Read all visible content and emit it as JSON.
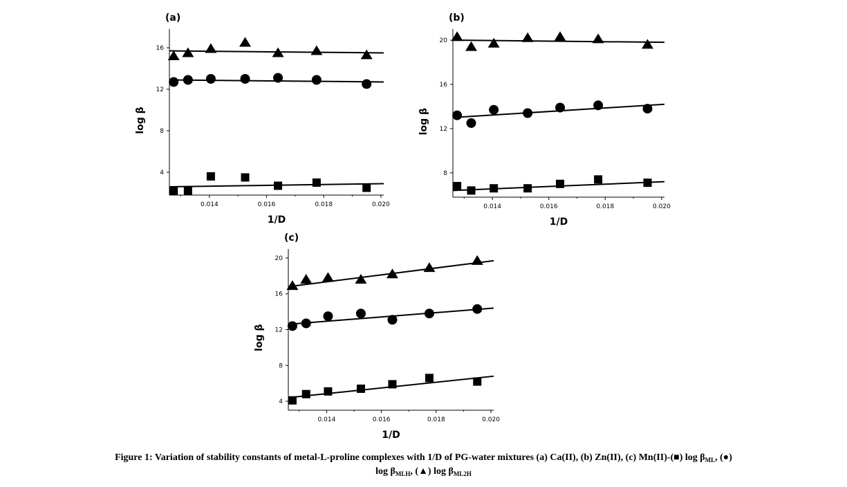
{
  "chart_data": [
    {
      "type": "scatter",
      "panel_label": "(a)",
      "xlabel": "1/D",
      "ylabel": "log β",
      "xlim": [
        0.0126,
        0.0201
      ],
      "ylim": [
        1.8,
        17.8
      ],
      "xticks": [
        0.014,
        0.016,
        0.018,
        0.02
      ],
      "xtick_labels": [
        "0.014",
        "0.016",
        "0.018",
        "0.020"
      ],
      "yticks": [
        4,
        8,
        12,
        16
      ],
      "ytick_labels": [
        "4",
        "8",
        "12",
        "16"
      ],
      "series": [
        {
          "marker": "square",
          "x": [
            0.01275,
            0.01325,
            0.01405,
            0.01525,
            0.0164,
            0.01775,
            0.0195
          ],
          "y": [
            2.2,
            2.2,
            3.6,
            3.5,
            2.7,
            3.0,
            2.5
          ],
          "fit": [
            2.6,
            2.9
          ]
        },
        {
          "marker": "circle",
          "x": [
            0.01275,
            0.01325,
            0.01405,
            0.01525,
            0.0164,
            0.01775,
            0.0195
          ],
          "y": [
            12.7,
            12.9,
            13.0,
            13.0,
            13.1,
            12.9,
            12.5
          ],
          "fit": [
            12.9,
            12.7
          ]
        },
        {
          "marker": "triangle",
          "x": [
            0.01275,
            0.01325,
            0.01405,
            0.01525,
            0.0164,
            0.01775,
            0.0195
          ],
          "y": [
            15.2,
            15.5,
            15.9,
            16.5,
            15.5,
            15.7,
            15.3
          ],
          "fit": [
            15.7,
            15.5
          ]
        }
      ]
    },
    {
      "type": "scatter",
      "panel_label": "(b)",
      "xlabel": "1/D",
      "ylabel": "log β",
      "xlim": [
        0.0126,
        0.0201
      ],
      "ylim": [
        5.8,
        21.0
      ],
      "xticks": [
        0.014,
        0.016,
        0.018,
        0.02
      ],
      "xtick_labels": [
        "0.014",
        "0.016",
        "0.018",
        "0.020"
      ],
      "yticks": [
        8,
        12,
        16,
        20
      ],
      "ytick_labels": [
        "8",
        "12",
        "16",
        "20"
      ],
      "series": [
        {
          "marker": "square",
          "x": [
            0.01275,
            0.01325,
            0.01405,
            0.01525,
            0.0164,
            0.01775,
            0.0195
          ],
          "y": [
            6.8,
            6.4,
            6.6,
            6.6,
            7.0,
            7.4,
            7.1
          ],
          "fit": [
            6.4,
            7.2
          ]
        },
        {
          "marker": "circle",
          "x": [
            0.01275,
            0.01325,
            0.01405,
            0.01525,
            0.0164,
            0.01775,
            0.0195
          ],
          "y": [
            13.2,
            12.5,
            13.7,
            13.4,
            13.9,
            14.1,
            13.8
          ],
          "fit": [
            13.0,
            14.2
          ]
        },
        {
          "marker": "triangle",
          "x": [
            0.01275,
            0.01325,
            0.01405,
            0.01525,
            0.0164,
            0.01775,
            0.0195
          ],
          "y": [
            20.3,
            19.4,
            19.7,
            20.2,
            20.3,
            20.1,
            19.6
          ],
          "fit": [
            20.0,
            19.8
          ]
        }
      ]
    },
    {
      "type": "scatter",
      "panel_label": "(c)",
      "xlabel": "1/D",
      "ylabel": "log β",
      "xlim": [
        0.0126,
        0.0201
      ],
      "ylim": [
        3.0,
        21.0
      ],
      "xticks": [
        0.014,
        0.016,
        0.018,
        0.02
      ],
      "xtick_labels": [
        "0.014",
        "0.016",
        "0.018",
        "0.020"
      ],
      "yticks": [
        4,
        8,
        12,
        16,
        20
      ],
      "ytick_labels": [
        "4",
        "8",
        "12",
        "16",
        "20"
      ],
      "series": [
        {
          "marker": "square",
          "x": [
            0.01275,
            0.01325,
            0.01405,
            0.01525,
            0.0164,
            0.01775,
            0.0195
          ],
          "y": [
            4.1,
            4.8,
            5.1,
            5.4,
            5.9,
            6.6,
            6.2
          ],
          "fit": [
            4.4,
            6.8
          ]
        },
        {
          "marker": "circle",
          "x": [
            0.01275,
            0.01325,
            0.01405,
            0.01525,
            0.0164,
            0.01775,
            0.0195
          ],
          "y": [
            12.4,
            12.7,
            13.5,
            13.8,
            13.1,
            13.8,
            14.3
          ],
          "fit": [
            12.6,
            14.4
          ]
        },
        {
          "marker": "triangle",
          "x": [
            0.01275,
            0.01325,
            0.01405,
            0.01525,
            0.0164,
            0.01775,
            0.0195
          ],
          "y": [
            16.9,
            17.6,
            17.8,
            17.6,
            18.2,
            18.9,
            19.7
          ],
          "fit": [
            16.8,
            19.7
          ]
        }
      ]
    }
  ],
  "caption": {
    "line1_text": "Figure 1: Variation of stability constants of metal-L-proline complexes with 1/D of PG-water mixtures (a) Ca(II), (b) Zn(II), (c) Mn(II)-(■) log β",
    "line1_sub1": "ML",
    "line1_mid": ", (●)",
    "line2_prefix": "log β",
    "line2_sub1": "MLH",
    "line2_mid": ", (▲) log β",
    "line2_sub2": "ML2H"
  }
}
